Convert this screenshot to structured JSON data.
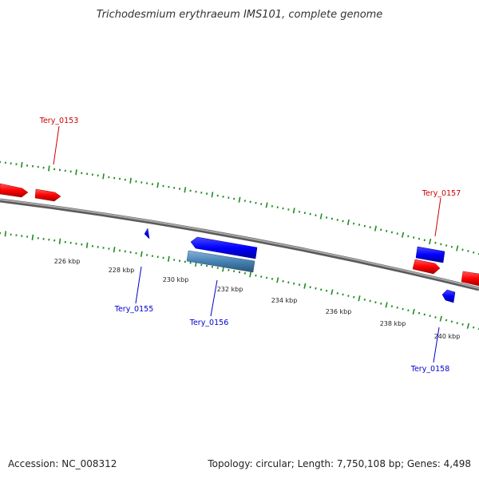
{
  "title": "Trichodesmium erythraeum IMS101, complete genome",
  "footer": {
    "accession": "Accession: NC_008312",
    "summary": "Topology: circular; Length: 7,750,108 bp; Genes: 4,498"
  },
  "colors": {
    "forward_gene": "#ff0000",
    "reverse_gene": "#0000ff",
    "cds_feature": "#4682b4",
    "ticks": "#228b22",
    "backbone": "#808080",
    "forward_label": "#cc0000",
    "reverse_label": "#0000cc"
  },
  "scale": {
    "unit": "kbp",
    "labels": [
      "226 kbp",
      "228 kbp",
      "230 kbp",
      "232 kbp",
      "234 kbp",
      "236 kbp",
      "238 kbp",
      "240 kbp"
    ]
  },
  "genes": [
    {
      "label": "Tery_0153",
      "strand": "forward"
    },
    {
      "label": "Tery_0155",
      "strand": "reverse"
    },
    {
      "label": "Tery_0156",
      "strand": "reverse"
    },
    {
      "label": "Tery_0157",
      "strand": "forward"
    },
    {
      "label": "Tery_0158",
      "strand": "reverse"
    }
  ]
}
